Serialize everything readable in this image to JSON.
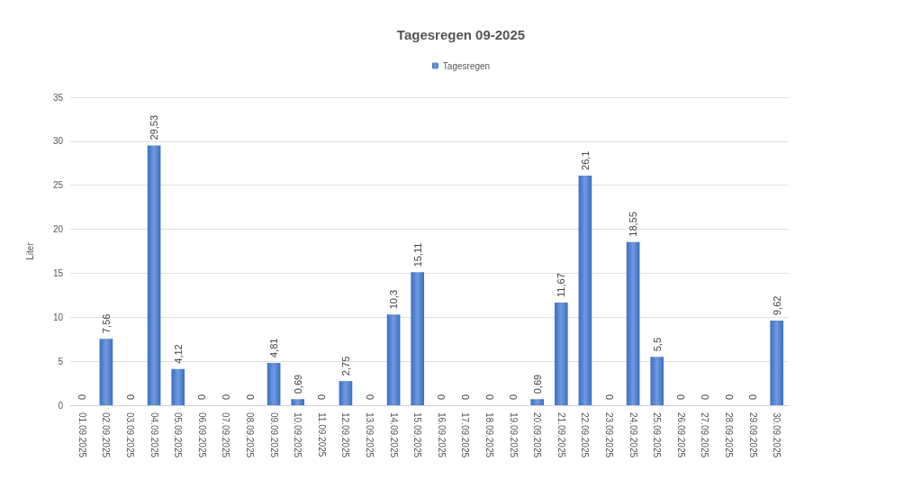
{
  "chart_data": {
    "type": "bar",
    "title": "Tagesregen 09-2025",
    "ylabel": "Liter",
    "categories": [
      "01.09.2025",
      "02.09.2025",
      "03.09.2025",
      "04.09.2025",
      "05.09.2025",
      "06.09.2025",
      "07.09.2025",
      "08.09.2025",
      "09.09.2025",
      "10.09.2025",
      "11.09.2025",
      "12.09.2025",
      "13.09.2025",
      "14.09.2025",
      "15.09.2025",
      "16.09.2025",
      "17.09.2025",
      "18.09.2025",
      "19.09.2025",
      "20.09.2025",
      "21.09.2025",
      "22.09.2025",
      "23.09.2025",
      "24.09.2025",
      "25.09.2025",
      "26.09.2025",
      "27.09.2025",
      "28.09.2025",
      "29.09.2025",
      "30.09.2025"
    ],
    "series": [
      {
        "name": "Tagesregen",
        "color": "#3a6fc2",
        "values": [
          0,
          7.56,
          0,
          29.53,
          4.12,
          0,
          0,
          0,
          4.81,
          0.69,
          0,
          2.75,
          0,
          10.3,
          15.11,
          0,
          0,
          0,
          0,
          0.69,
          11.67,
          26.1,
          0,
          18.55,
          5.5,
          0,
          0,
          0,
          0,
          9.62
        ],
        "value_labels": [
          "0",
          "7,56",
          "0",
          "29,53",
          "4,12",
          "0",
          "0",
          "0",
          "4,81",
          "0,69",
          "0",
          "2,75",
          "0",
          "10,3",
          "15,11",
          "0",
          "0",
          "0",
          "0",
          "0,69",
          "11,67",
          "26,1",
          "0",
          "18,55",
          "5,5",
          "0",
          "0",
          "0",
          "0",
          "9,62"
        ]
      }
    ],
    "ylim": [
      0,
      35
    ],
    "yticks": [
      0,
      5,
      10,
      15,
      20,
      25,
      30,
      35
    ],
    "grid": "y",
    "legend": "top"
  }
}
